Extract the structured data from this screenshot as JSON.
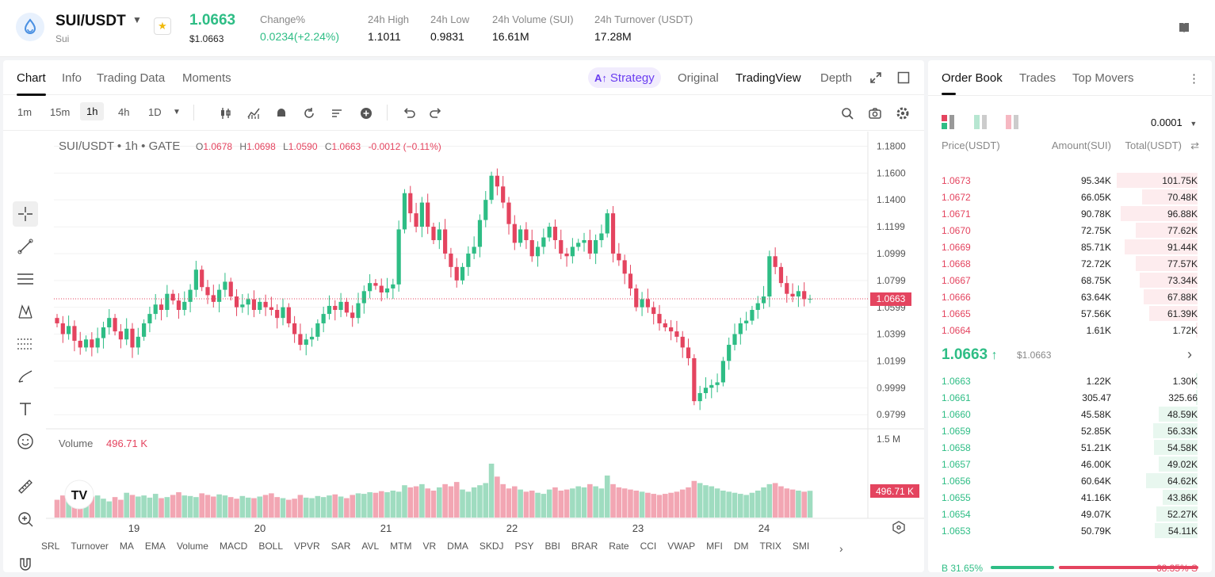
{
  "header": {
    "pair": "SUI/USDT",
    "pair_sub": "Sui",
    "last_price": "1.0663",
    "last_price_usd": "$1.0663",
    "change_label": "Change%",
    "change_value": "0.0234(+2.24%)",
    "high_label": "24h High",
    "high_value": "1.1011",
    "low_label": "24h Low",
    "low_value": "0.9831",
    "volume_label": "24h Volume (SUI)",
    "volume_value": "16.61M",
    "turnover_label": "24h Turnover (USDT)",
    "turnover_value": "17.28M",
    "colors": {
      "up": "#2ebd85",
      "down": "#e4445f",
      "accent": "#6a3df0"
    }
  },
  "chart_tabs": {
    "chart": "Chart",
    "info": "Info",
    "trading_data": "Trading Data",
    "moments": "Moments"
  },
  "view_tabs": {
    "strategy": "Strategy",
    "original": "Original",
    "tradingview": "TradingView",
    "depth": "Depth"
  },
  "timeframes": {
    "m1": "1m",
    "m15": "15m",
    "h1": "1h",
    "h4": "4h",
    "d1": "1D"
  },
  "legend": {
    "symbol": "SUI/USDT • 1h • GATE",
    "open_label": "O",
    "open": "1.0678",
    "high_label": "H",
    "high": "1.0698",
    "low_label": "L",
    "low": "1.0590",
    "close_label": "C",
    "close": "1.0663",
    "change": "-0.0012 (−0.11%)"
  },
  "volume_legend": {
    "label": "Volume",
    "value": "496.71 K"
  },
  "chart_data": {
    "type": "candlestick",
    "x_ticks": [
      "19",
      "20",
      "21",
      "22",
      "23",
      "24"
    ],
    "y_ticks": [
      "1.1800",
      "1.1600",
      "1.1400",
      "1.1199",
      "1.0999",
      "1.0799",
      "1.0599",
      "1.0399",
      "1.0199",
      "0.9999",
      "0.9799"
    ],
    "ylim": [
      0.97,
      1.185
    ],
    "last_price": 1.0663,
    "last_price_label": "1.0663",
    "volume_axis_label": "1.5 M",
    "volume_max": 1500,
    "last_volume_label": "496.71 K",
    "close_path": [
      1.048,
      1.04,
      1.046,
      1.035,
      1.03,
      1.036,
      1.03,
      1.037,
      1.045,
      1.052,
      1.042,
      1.036,
      1.044,
      1.03,
      1.038,
      1.048,
      1.055,
      1.062,
      1.058,
      1.07,
      1.065,
      1.058,
      1.064,
      1.073,
      1.088,
      1.075,
      1.069,
      1.064,
      1.073,
      1.079,
      1.068,
      1.06,
      1.062,
      1.066,
      1.058,
      1.064,
      1.06,
      1.058,
      1.052,
      1.06,
      1.048,
      1.04,
      1.032,
      1.036,
      1.038,
      1.048,
      1.055,
      1.061,
      1.058,
      1.064,
      1.056,
      1.052,
      1.063,
      1.072,
      1.078,
      1.076,
      1.071,
      1.074,
      1.077,
      1.118,
      1.145,
      1.13,
      1.12,
      1.138,
      1.12,
      1.11,
      1.118,
      1.1,
      1.09,
      1.08,
      1.09,
      1.1,
      1.105,
      1.125,
      1.14,
      1.158,
      1.15,
      1.138,
      1.122,
      1.108,
      1.118,
      1.11,
      1.098,
      1.105,
      1.112,
      1.12,
      1.11,
      1.1,
      1.098,
      1.105,
      1.108,
      1.11,
      1.1,
      1.11,
      1.115,
      1.13,
      1.1,
      1.095,
      1.085,
      1.074,
      1.06,
      1.066,
      1.06,
      1.055,
      1.048,
      1.045,
      1.042,
      1.038,
      1.03,
      1.022,
      0.99,
      0.996,
      1.0,
      1.002,
      1.004,
      1.02,
      1.032,
      1.04,
      1.048,
      1.05,
      1.058,
      1.063,
      1.068,
      1.098,
      1.09,
      1.078,
      1.07,
      1.068,
      1.072,
      1.066,
      1.0663
    ],
    "volume_path": [
      330,
      410,
      380,
      300,
      360,
      420,
      390,
      410,
      350,
      300,
      380,
      330,
      460,
      420,
      390,
      410,
      370,
      440,
      360,
      380,
      420,
      470,
      410,
      400,
      380,
      450,
      420,
      390,
      430,
      410,
      380,
      350,
      400,
      370,
      360,
      390,
      420,
      450,
      380,
      360,
      330,
      350,
      420,
      370,
      360,
      400,
      380,
      410,
      430,
      390,
      360,
      420,
      450,
      440,
      470,
      460,
      490,
      470,
      500,
      480,
      600,
      560,
      580,
      620,
      540,
      500,
      560,
      620,
      580,
      660,
      520,
      480,
      560,
      600,
      640,
      1000,
      760,
      620,
      540,
      580,
      520,
      480,
      500,
      460,
      440,
      520,
      560,
      500,
      520,
      540,
      580,
      560,
      620,
      580,
      540,
      780,
      620,
      560,
      540,
      520,
      500,
      480,
      460,
      440,
      420,
      440,
      460,
      480,
      520,
      560,
      680,
      640,
      600,
      580,
      540,
      500,
      480,
      460,
      440,
      420,
      460,
      500,
      560,
      620,
      640,
      580,
      540,
      520,
      500,
      480,
      496.71
    ]
  },
  "indicators": [
    "SRL",
    "Turnover",
    "MA",
    "EMA",
    "Volume",
    "MACD",
    "BOLL",
    "VPVR",
    "SAR",
    "AVL",
    "MTM",
    "VR",
    "DMA",
    "SKDJ",
    "PSY",
    "BBI",
    "BRAR",
    "Rate",
    "CCI",
    "VWAP",
    "MFI",
    "DM",
    "TRIX",
    "SMI"
  ],
  "book": {
    "tabs": {
      "order_book": "Order Book",
      "trades": "Trades",
      "top_movers": "Top Movers"
    },
    "precision": "0.0001",
    "col_price": "Price(USDT)",
    "col_amount": "Amount(SUI)",
    "col_total": "Total(USDT)",
    "asks": [
      {
        "price": "1.0673",
        "amount": "95.34K",
        "total": "101.75K",
        "depth": 1.0
      },
      {
        "price": "1.0672",
        "amount": "66.05K",
        "total": "70.48K",
        "depth": 0.69
      },
      {
        "price": "1.0671",
        "amount": "90.78K",
        "total": "96.88K",
        "depth": 0.95
      },
      {
        "price": "1.0670",
        "amount": "72.75K",
        "total": "77.62K",
        "depth": 0.76
      },
      {
        "price": "1.0669",
        "amount": "85.71K",
        "total": "91.44K",
        "depth": 0.9
      },
      {
        "price": "1.0668",
        "amount": "72.72K",
        "total": "77.57K",
        "depth": 0.76
      },
      {
        "price": "1.0667",
        "amount": "68.75K",
        "total": "73.34K",
        "depth": 0.72
      },
      {
        "price": "1.0666",
        "amount": "63.64K",
        "total": "67.88K",
        "depth": 0.67
      },
      {
        "price": "1.0665",
        "amount": "57.56K",
        "total": "61.39K",
        "depth": 0.6
      },
      {
        "price": "1.0664",
        "amount": "1.61K",
        "total": "1.72K",
        "depth": 0.02
      }
    ],
    "mid_price": "1.0663",
    "mid_price_usd": "$1.0663",
    "bids": [
      {
        "price": "1.0663",
        "amount": "1.22K",
        "total": "1.30K",
        "depth": 0.02
      },
      {
        "price": "1.0661",
        "amount": "305.47",
        "total": "325.66",
        "depth": 0.01
      },
      {
        "price": "1.0660",
        "amount": "45.58K",
        "total": "48.59K",
        "depth": 0.48
      },
      {
        "price": "1.0659",
        "amount": "52.85K",
        "total": "56.33K",
        "depth": 0.55
      },
      {
        "price": "1.0658",
        "amount": "51.21K",
        "total": "54.58K",
        "depth": 0.54
      },
      {
        "price": "1.0657",
        "amount": "46.00K",
        "total": "49.02K",
        "depth": 0.48
      },
      {
        "price": "1.0656",
        "amount": "60.64K",
        "total": "64.62K",
        "depth": 0.64
      },
      {
        "price": "1.0655",
        "amount": "41.16K",
        "total": "43.86K",
        "depth": 0.43
      },
      {
        "price": "1.0654",
        "amount": "49.07K",
        "total": "52.27K",
        "depth": 0.51
      },
      {
        "price": "1.0653",
        "amount": "50.79K",
        "total": "54.11K",
        "depth": 0.53
      }
    ],
    "buy_ratio": "B 31.65%",
    "sell_ratio": "68.35% S",
    "buy_fraction": 0.3165
  }
}
